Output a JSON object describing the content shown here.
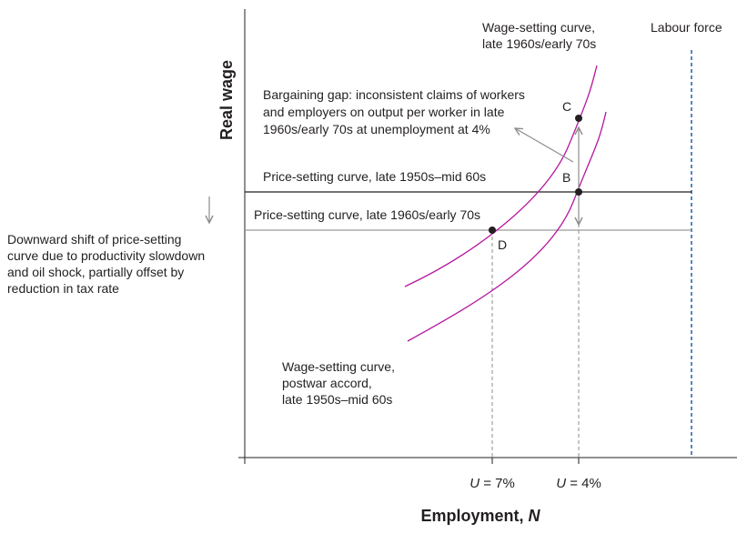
{
  "axes": {
    "y_label": "Real wage",
    "x_label": "Employment, ",
    "x_label_var": "N",
    "x_ticks": [
      {
        "var": "U",
        "rest": " = 7%"
      },
      {
        "var": "U",
        "rest": " = 4%"
      }
    ]
  },
  "labour_force": "Labour force",
  "curves": {
    "ws_high": [
      "Wage-setting curve,",
      "late 1960s/early 70s"
    ],
    "ws_low": [
      "Wage-setting curve,",
      "postwar accord,",
      "late 1950s–mid 60s"
    ],
    "ps_high": "Price-setting curve, late 1950s–mid 60s",
    "ps_low": "Price-setting curve, late 1960s/early 70s"
  },
  "annotations": {
    "bargaining_gap": [
      "Bargaining gap: inconsistent claims of workers",
      "and employers on output per worker in late",
      "1960s/early 70s at unemployment at 4%"
    ],
    "shift_note": [
      "Downward shift of price-setting",
      "curve due to productivity slowdown",
      "and oil shock, partially offset by",
      "reduction in tax rate"
    ]
  },
  "points": {
    "B": "B",
    "C": "C",
    "D": "D"
  },
  "colors": {
    "wage_curve": "#b5179e",
    "ps_high": "#231f20",
    "ps_low": "#9a9a9a",
    "labour_force": "#1f5fa8",
    "arrow": "#8c8c8c"
  }
}
